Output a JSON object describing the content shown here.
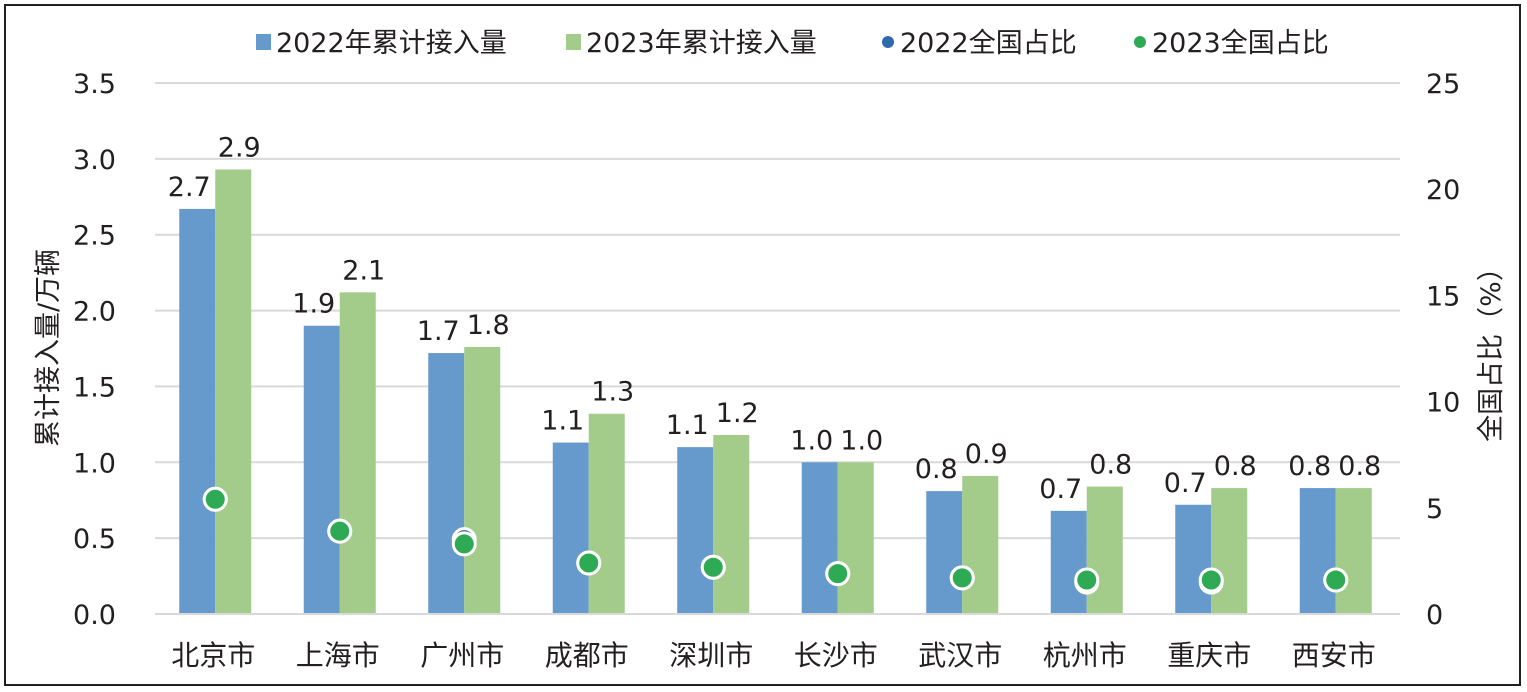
{
  "chart_data": {
    "type": "bar",
    "categories": [
      "北京市",
      "上海市",
      "广州市",
      "成都市",
      "深圳市",
      "长沙市",
      "武汉市",
      "杭州市",
      "重庆市",
      "西安市"
    ],
    "series": [
      {
        "name": "2022年累计接入量",
        "kind": "bar",
        "axis": "left",
        "color": "#6699cc",
        "values": [
          2.67,
          1.9,
          1.72,
          1.13,
          1.1,
          1.0,
          0.81,
          0.68,
          0.72,
          0.83
        ],
        "labels": [
          "2.7",
          "1.9",
          "1.7",
          "1.1",
          "1.1",
          "1.0",
          "0.8",
          "0.7",
          "0.7",
          "0.8"
        ]
      },
      {
        "name": "2023年累计接入量",
        "kind": "bar",
        "axis": "left",
        "color": "#a3cc8a",
        "values": [
          2.93,
          2.12,
          1.76,
          1.32,
          1.18,
          1.0,
          0.91,
          0.84,
          0.83,
          0.83
        ],
        "labels": [
          "2.9",
          "2.1",
          "1.8",
          "1.3",
          "1.2",
          "1.0",
          "0.9",
          "0.8",
          "0.8",
          "0.8"
        ]
      },
      {
        "name": "2022全国占比",
        "kind": "point",
        "axis": "right",
        "color": "#2e6aad",
        "values": [
          5.4,
          3.9,
          3.5,
          2.4,
          2.2,
          1.9,
          1.7,
          1.5,
          1.5,
          1.6
        ]
      },
      {
        "name": "2023全国占比",
        "kind": "point",
        "axis": "right",
        "color": "#2eaa55",
        "values": [
          5.4,
          3.9,
          3.3,
          2.4,
          2.2,
          1.9,
          1.7,
          1.6,
          1.6,
          1.6
        ]
      }
    ],
    "ylabel": "累计接入量/万辆",
    "ylabel_right": "全国占比（%）",
    "ylim": [
      0,
      3.5
    ],
    "ylim_right": [
      0,
      25
    ],
    "yticks": [
      "0.0",
      "0.5",
      "1.0",
      "1.5",
      "2.0",
      "2.5",
      "3.0",
      "3.5"
    ],
    "yticks_right": [
      "0",
      "5",
      "10",
      "15",
      "20",
      "25"
    ],
    "grid": true,
    "legend_position": "top"
  }
}
